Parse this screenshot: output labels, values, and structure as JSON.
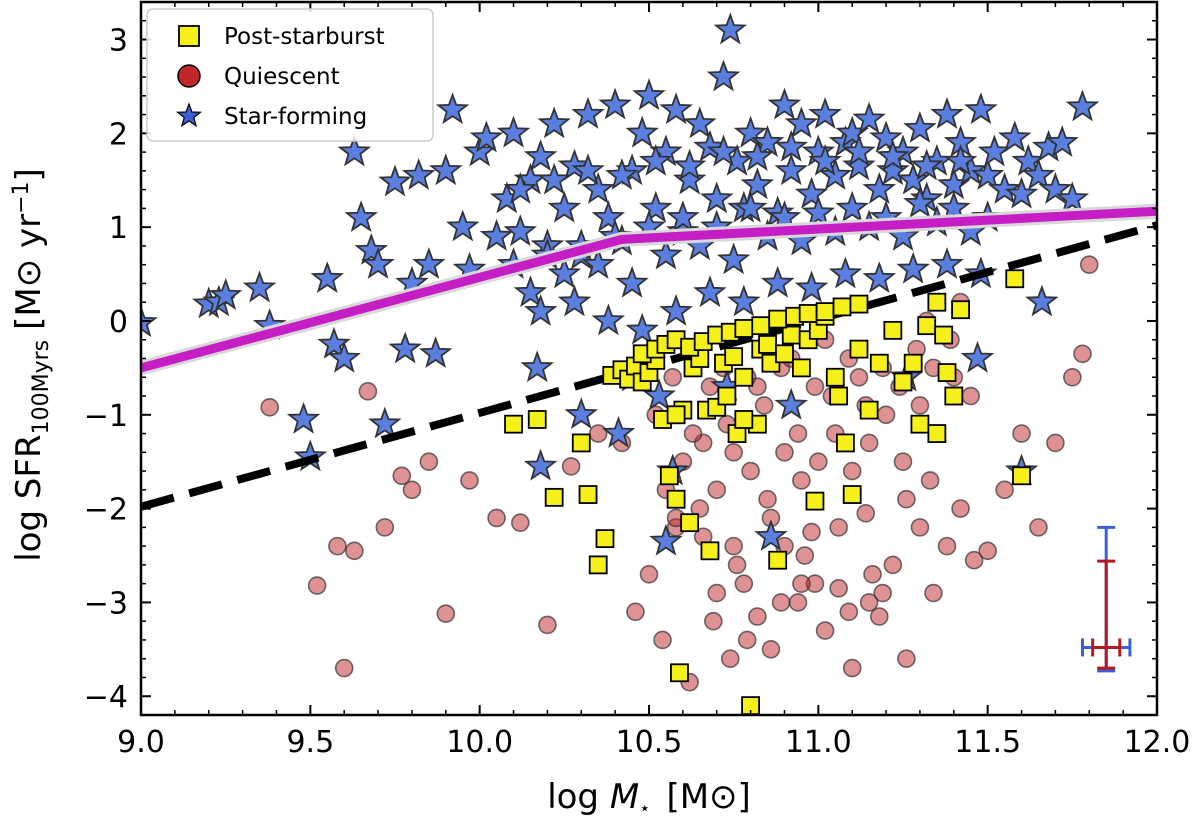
{
  "chart_data": {
    "type": "scatter",
    "title": "",
    "xlabel": "log M⋆ [M⊙]",
    "ylabel": "log SFR100Myrs [M⊙ yr⁻¹]",
    "xlabel_parts": {
      "prefix": "log ",
      "symbol": "M",
      "subscript": "⋆",
      "unit": "[M⊙]"
    },
    "ylabel_parts": {
      "prefix": "log SFR",
      "subscript": "100Myrs",
      "unit": "[M⊙ yr",
      "exponent": "−1",
      "close": "]"
    },
    "xlim": [
      9.0,
      12.0
    ],
    "ylim": [
      -4.2,
      3.4
    ],
    "xticks": [
      9.0,
      9.5,
      10.0,
      10.5,
      11.0,
      11.5,
      12.0
    ],
    "xtick_labels": [
      "9.0",
      "9.5",
      "10.0",
      "10.5",
      "11.0",
      "11.5",
      "12.0"
    ],
    "yticks": [
      -4,
      -3,
      -2,
      -1,
      0,
      1,
      2,
      3
    ],
    "ytick_labels": [
      "−4",
      "−3",
      "−2",
      "−1",
      "0",
      "1",
      "2",
      "3"
    ],
    "grid": false,
    "legend_position": "top-left",
    "legend": [
      "Post-starburst",
      "Quiescent",
      "Star-forming"
    ],
    "colors": {
      "post_starburst": "#f5f01a",
      "quiescent": "#c0262a",
      "star_forming": "#5a7fe0",
      "main_sequence": "#c41ec4",
      "dividing_line": "#000000",
      "errbar_sf": "#3a5fd8",
      "errbar_q": "#b3191e"
    },
    "series": [
      {
        "name": "Post-starburst",
        "marker": "square",
        "x": [
          10.1,
          10.17,
          10.22,
          10.3,
          10.32,
          10.35,
          10.37,
          10.39,
          10.42,
          10.44,
          10.46,
          10.48,
          10.5,
          10.52,
          10.54,
          10.56,
          10.58,
          10.59,
          10.6,
          10.62,
          10.63,
          10.65,
          10.67,
          10.68,
          10.7,
          10.72,
          10.73,
          10.75,
          10.76,
          10.78,
          10.8,
          10.82,
          10.83,
          10.85,
          10.86,
          10.88,
          10.9,
          10.92,
          10.95,
          10.97,
          10.99,
          11.0,
          11.02,
          11.05,
          11.06,
          11.08,
          11.1,
          11.12,
          11.15,
          11.18,
          11.22,
          11.25,
          11.28,
          11.3,
          11.32,
          11.35,
          11.37,
          11.38,
          11.4,
          11.42,
          11.58,
          11.6,
          10.48,
          10.52,
          10.55,
          10.58,
          10.62,
          10.66,
          10.7,
          10.74,
          10.78,
          10.83,
          10.88,
          10.93,
          10.97,
          11.02,
          11.07,
          11.12,
          10.58,
          10.78,
          11.35
        ],
        "y": [
          -1.1,
          -1.05,
          -1.88,
          -1.3,
          -1.85,
          -2.6,
          -2.32,
          -0.58,
          -0.52,
          -0.62,
          -0.48,
          -0.65,
          -0.55,
          -0.42,
          -1.05,
          -1.65,
          -1.9,
          -3.75,
          -0.95,
          -2.15,
          -0.5,
          -0.4,
          -0.95,
          -2.45,
          -0.92,
          -0.45,
          -0.8,
          -0.38,
          -1.2,
          -0.6,
          -4.1,
          -1.1,
          -0.3,
          -0.25,
          -0.45,
          -2.55,
          -0.35,
          -0.15,
          -0.5,
          -0.2,
          -1.92,
          -0.1,
          0.05,
          -0.6,
          -0.8,
          -1.3,
          -1.85,
          -0.3,
          -0.95,
          -0.45,
          -0.1,
          -0.65,
          -0.45,
          -1.1,
          -0.05,
          0.2,
          -0.15,
          -0.55,
          -0.8,
          0.12,
          0.45,
          -1.65,
          -0.35,
          -0.3,
          -0.25,
          -0.2,
          -0.28,
          -0.22,
          -0.15,
          -0.12,
          -0.08,
          -0.05,
          0.02,
          0.05,
          0.08,
          0.1,
          0.15,
          0.18,
          -1.0,
          -1.05,
          -1.2
        ]
      },
      {
        "name": "Quiescent",
        "marker": "circle",
        "x": [
          9.38,
          9.52,
          9.58,
          9.6,
          9.63,
          9.67,
          9.72,
          9.77,
          9.8,
          9.85,
          9.9,
          9.97,
          10.05,
          10.12,
          10.2,
          10.27,
          10.35,
          10.42,
          10.46,
          10.5,
          10.54,
          10.58,
          10.62,
          10.66,
          10.7,
          10.74,
          10.78,
          10.82,
          10.86,
          10.9,
          10.94,
          10.98,
          11.02,
          11.06,
          11.1,
          11.14,
          11.18,
          11.22,
          11.26,
          11.3,
          11.34,
          11.38,
          11.42,
          11.46,
          11.5,
          11.55,
          11.6,
          11.65,
          11.7,
          11.75,
          11.78,
          11.8,
          10.55,
          10.6,
          10.65,
          10.7,
          10.75,
          10.8,
          10.85,
          10.9,
          10.95,
          11.0,
          11.05,
          11.1,
          11.15,
          11.2,
          11.25,
          11.3,
          11.35,
          11.4,
          11.45,
          10.52,
          10.57,
          10.63,
          10.68,
          10.73,
          10.79,
          10.84,
          10.89,
          10.94,
          10.99,
          11.04,
          11.09,
          11.14,
          11.19,
          11.24,
          11.29,
          11.34,
          11.39,
          10.62,
          10.72,
          10.82,
          10.92,
          11.02,
          11.12,
          11.22,
          11.32,
          11.42,
          10.66,
          10.76,
          10.86,
          10.96,
          11.06,
          11.16,
          11.26,
          10.69,
          10.79,
          10.89,
          10.99,
          11.09,
          11.19,
          10.58,
          10.75,
          10.95,
          11.15,
          11.33
        ],
        "y": [
          -0.92,
          -2.82,
          -2.4,
          -3.7,
          -2.45,
          -0.75,
          -2.2,
          -1.65,
          -1.8,
          -1.5,
          -3.12,
          -1.7,
          -2.1,
          -2.15,
          -3.24,
          -1.55,
          -1.2,
          -1.3,
          -3.1,
          -2.7,
          -3.4,
          -2.2,
          -3.85,
          -1.3,
          -2.9,
          -3.6,
          -2.8,
          -3.15,
          -3.5,
          -2.4,
          -3.0,
          -2.25,
          -3.3,
          -2.85,
          -3.7,
          -2.05,
          -3.15,
          -2.6,
          -3.6,
          -2.2,
          -2.9,
          -2.4,
          -2.0,
          -2.55,
          -2.45,
          -1.8,
          -1.2,
          -2.2,
          -1.3,
          -0.6,
          -0.35,
          0.6,
          -1.8,
          -1.5,
          -2.0,
          -1.8,
          -1.4,
          -1.6,
          -1.9,
          -1.4,
          -1.7,
          -1.5,
          -1.2,
          -1.6,
          -1.3,
          -1.0,
          -1.5,
          -0.9,
          -1.2,
          -0.6,
          -0.8,
          -1.0,
          -0.6,
          -1.2,
          -0.7,
          -1.1,
          -0.6,
          -0.9,
          -0.5,
          -1.2,
          -0.7,
          -0.8,
          -0.4,
          -0.9,
          -0.5,
          -0.7,
          -0.3,
          -0.5,
          -0.2,
          -0.3,
          -0.5,
          -0.7,
          -0.4,
          -0.2,
          -0.6,
          -0.1,
          0.0,
          0.2,
          -2.3,
          -2.6,
          -2.1,
          -2.5,
          -2.2,
          -2.7,
          -1.9,
          -3.2,
          -3.4,
          -3.0,
          -2.8,
          -3.1,
          -2.9,
          -2.1,
          -2.4,
          -2.8,
          -3.0,
          -1.7
        ]
      },
      {
        "name": "Star-forming",
        "marker": "star",
        "x": [
          9.0,
          9.2,
          9.23,
          9.25,
          9.35,
          9.38,
          9.48,
          9.5,
          9.55,
          9.57,
          9.6,
          9.63,
          9.65,
          9.68,
          9.7,
          9.72,
          9.75,
          9.78,
          9.8,
          9.82,
          9.85,
          9.87,
          9.9,
          9.92,
          9.95,
          9.97,
          10.0,
          10.02,
          10.05,
          10.08,
          10.1,
          10.12,
          10.15,
          10.18,
          10.2,
          10.22,
          10.25,
          10.28,
          10.3,
          10.32,
          10.35,
          10.38,
          10.4,
          10.42,
          10.45,
          10.48,
          10.5,
          10.52,
          10.55,
          10.58,
          10.6,
          10.62,
          10.65,
          10.68,
          10.7,
          10.72,
          10.74,
          10.76,
          10.78,
          10.8,
          10.82,
          10.85,
          10.88,
          10.9,
          10.92,
          10.95,
          10.98,
          11.0,
          11.02,
          11.05,
          11.08,
          11.1,
          11.12,
          11.15,
          11.18,
          11.2,
          11.22,
          11.25,
          11.28,
          11.3,
          11.32,
          11.35,
          11.38,
          11.4,
          11.42,
          11.45,
          11.48,
          11.5,
          11.52,
          11.55,
          11.58,
          11.6,
          11.62,
          11.65,
          11.68,
          11.7,
          11.72,
          11.75,
          11.78,
          10.1,
          10.2,
          10.3,
          10.4,
          10.5,
          10.6,
          10.7,
          10.8,
          10.9,
          11.0,
          11.1,
          11.2,
          11.3,
          11.4,
          11.5,
          10.15,
          10.25,
          10.35,
          10.45,
          10.55,
          10.65,
          10.75,
          10.85,
          10.95,
          11.05,
          11.15,
          11.25,
          11.35,
          11.45,
          10.12,
          10.22,
          10.32,
          10.42,
          10.52,
          10.62,
          10.72,
          10.82,
          10.92,
          11.02,
          11.12,
          11.22,
          11.32,
          11.42,
          10.18,
          10.28,
          10.38,
          10.48,
          10.58,
          10.68,
          10.78,
          10.88,
          10.98,
          11.08,
          11.18,
          11.28,
          11.38,
          11.48,
          10.17,
          10.3,
          10.41,
          10.53,
          10.57,
          10.73,
          10.86,
          10.92,
          11.26,
          11.47,
          11.6,
          11.66,
          10.18,
          10.45,
          10.55
        ],
        "y": [
          -0.02,
          0.18,
          0.2,
          0.27,
          0.35,
          -0.05,
          -1.05,
          -1.45,
          0.45,
          -0.25,
          -0.4,
          1.8,
          1.1,
          0.75,
          0.6,
          -1.1,
          1.48,
          -0.3,
          0.4,
          1.55,
          0.6,
          -0.35,
          1.6,
          2.25,
          1.0,
          0.55,
          1.8,
          1.95,
          0.9,
          1.3,
          2.0,
          0.95,
          1.5,
          1.75,
          0.8,
          2.1,
          1.2,
          1.65,
          0.7,
          2.2,
          1.4,
          1.1,
          2.3,
          0.85,
          1.6,
          2.0,
          2.4,
          1.2,
          1.8,
          2.25,
          0.95,
          1.5,
          2.1,
          1.85,
          1.3,
          2.6,
          3.1,
          1.7,
          1.2,
          2.0,
          1.45,
          1.9,
          1.15,
          2.3,
          1.6,
          2.1,
          1.35,
          1.8,
          2.2,
          1.55,
          1.9,
          2.0,
          1.65,
          2.15,
          1.4,
          1.95,
          1.6,
          1.8,
          1.5,
          2.05,
          1.3,
          1.7,
          2.2,
          1.45,
          1.9,
          1.6,
          2.25,
          1.55,
          1.8,
          1.4,
          1.95,
          1.35,
          1.7,
          1.55,
          1.85,
          1.4,
          1.9,
          1.3,
          2.28,
          0.6,
          0.7,
          0.8,
          0.9,
          1.0,
          1.1,
          1.0,
          1.2,
          1.1,
          1.15,
          1.2,
          1.1,
          1.25,
          1.2,
          1.1,
          0.3,
          0.5,
          0.6,
          0.4,
          0.7,
          0.8,
          0.65,
          0.9,
          0.85,
          0.95,
          1.0,
          0.9,
          1.05,
          0.95,
          1.4,
          1.5,
          1.6,
          1.55,
          1.7,
          1.65,
          1.8,
          1.75,
          1.85,
          1.7,
          1.8,
          1.75,
          1.65,
          1.7,
          0.1,
          0.2,
          0.0,
          -0.1,
          0.1,
          0.3,
          0.2,
          0.4,
          0.35,
          0.5,
          0.45,
          0.55,
          0.6,
          0.5,
          -0.5,
          -1.0,
          -1.2,
          -0.8,
          -1.6,
          -0.7,
          -2.3,
          -0.9,
          -0.6,
          -0.4,
          -1.6,
          0.2,
          -1.55,
          -0.6,
          -2.35
        ]
      }
    ],
    "lines": [
      {
        "name": "main-sequence",
        "x": [
          9.0,
          10.42,
          12.0
        ],
        "y": [
          -0.5,
          0.87,
          1.17
        ]
      },
      {
        "name": "dividing-line",
        "style": "dashed",
        "x": [
          9.0,
          12.0
        ],
        "y": [
          -1.98,
          1.02
        ]
      }
    ],
    "error_bars": [
      {
        "name": "star-forming",
        "x": 11.85,
        "y": -3.48,
        "xerr": 0.07,
        "yerr_plus": 1.28,
        "yerr_minus": 0.25
      },
      {
        "name": "quiescent",
        "x": 11.85,
        "y": -3.48,
        "xerr": 0.04,
        "yerr_plus": 0.92,
        "yerr_minus": 0.22
      }
    ]
  }
}
